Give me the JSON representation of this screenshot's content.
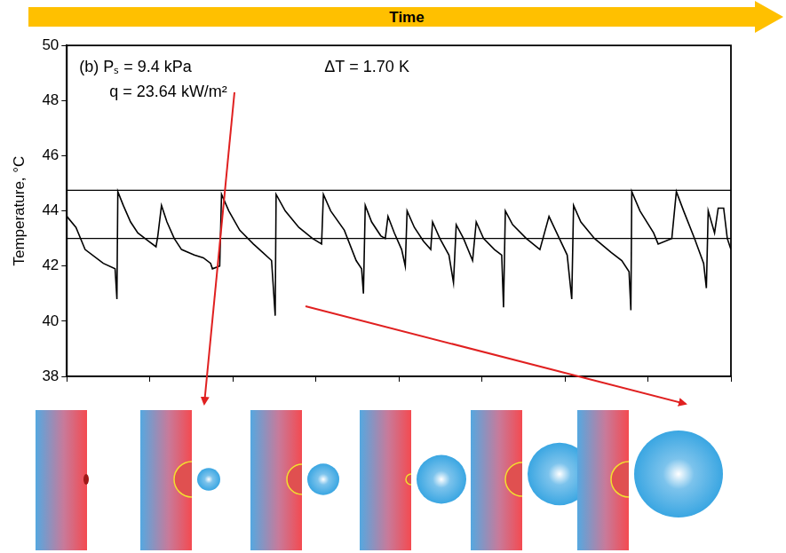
{
  "chart_data": {
    "type": "line",
    "xlabel": "Time",
    "ylabel": "Temperature, °C",
    "annotations": [
      "(b) Pₛ = 9.4 kPa",
      "ΔT = 1.70 K",
      "q = 23.64 kW/m²"
    ],
    "x": [
      0,
      10,
      20,
      40,
      53,
      55,
      56,
      62,
      70,
      78,
      90,
      98,
      100,
      104,
      110,
      118,
      126,
      140,
      150,
      158,
      160,
      168,
      170,
      178,
      190,
      205,
      215,
      225,
      229,
      230,
      240,
      255,
      270,
      280,
      282,
      290,
      305,
      318,
      324,
      326,
      328,
      335,
      345,
      350,
      353,
      360,
      368,
      372,
      374,
      382,
      392,
      400,
      402,
      410,
      420,
      425,
      428,
      436,
      446,
      450,
      458,
      470,
      478,
      480,
      482,
      490,
      505,
      520,
      530,
      540,
      550,
      555,
      557,
      565,
      580,
      598,
      610,
      618,
      620,
      621,
      630,
      645,
      650,
      665,
      670,
      678,
      690,
      700,
      703,
      705,
      712,
      716,
      722,
      726,
      730
    ],
    "values": [
      43.8,
      43.4,
      42.6,
      42.1,
      41.9,
      40.8,
      44.7,
      44.2,
      43.6,
      43.2,
      42.9,
      42.7,
      43.1,
      44.2,
      43.6,
      43.0,
      42.6,
      42.4,
      42.3,
      42.1,
      41.9,
      42.0,
      44.6,
      44.0,
      43.3,
      42.8,
      42.5,
      42.2,
      40.2,
      44.6,
      44.0,
      43.4,
      43.0,
      42.8,
      44.6,
      44.0,
      43.3,
      42.2,
      41.9,
      41.0,
      44.2,
      43.6,
      43.1,
      43.0,
      43.8,
      43.2,
      42.6,
      42.0,
      44.0,
      43.4,
      42.9,
      42.6,
      43.6,
      43.0,
      42.4,
      41.4,
      43.5,
      43.0,
      42.2,
      43.6,
      43.0,
      42.6,
      42.4,
      40.5,
      44.0,
      43.5,
      43.0,
      42.6,
      43.8,
      43.1,
      42.4,
      40.8,
      44.2,
      43.6,
      43.0,
      42.5,
      42.2,
      41.8,
      40.4,
      44.7,
      44.0,
      43.2,
      42.8,
      43.0,
      44.7,
      44.0,
      43.0,
      42.1,
      41.2,
      44.0,
      43.2,
      44.1,
      44.1,
      43.0,
      42.6
    ],
    "hlines": [
      44.75,
      43.0
    ],
    "color": "#000000",
    "marker": "none",
    "line_style": "solid",
    "xlim": [
      0,
      730
    ],
    "xticks": [
      0,
      91.25,
      182.5,
      273.75,
      365,
      456.25,
      547.5,
      638.75,
      730
    ],
    "ylim": [
      38,
      50
    ],
    "yticks": [
      38,
      40,
      42,
      44,
      46,
      48,
      50
    ],
    "tick_labels": "y",
    "grid": false
  }
}
